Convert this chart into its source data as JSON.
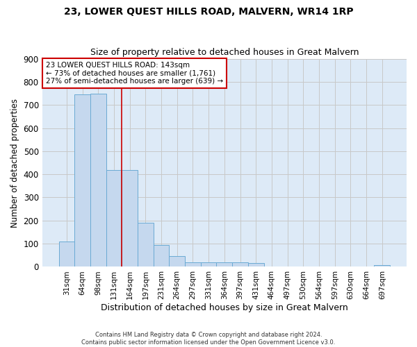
{
  "title": "23, LOWER QUEST HILLS ROAD, MALVERN, WR14 1RP",
  "subtitle": "Size of property relative to detached houses in Great Malvern",
  "xlabel": "Distribution of detached houses by size in Great Malvern",
  "ylabel": "Number of detached properties",
  "footer1": "Contains HM Land Registry data © Crown copyright and database right 2024.",
  "footer2": "Contains public sector information licensed under the Open Government Licence v3.0.",
  "categories": [
    "31sqm",
    "64sqm",
    "98sqm",
    "131sqm",
    "164sqm",
    "197sqm",
    "231sqm",
    "264sqm",
    "297sqm",
    "331sqm",
    "364sqm",
    "397sqm",
    "431sqm",
    "464sqm",
    "497sqm",
    "530sqm",
    "564sqm",
    "597sqm",
    "630sqm",
    "664sqm",
    "697sqm"
  ],
  "values": [
    110,
    745,
    750,
    420,
    420,
    190,
    95,
    45,
    20,
    20,
    18,
    18,
    15,
    0,
    0,
    0,
    0,
    0,
    0,
    0,
    8
  ],
  "bar_color": "#c5d8ee",
  "bar_edge_color": "#6aaad4",
  "grid_color": "#c8c8c8",
  "axes_bg_color": "#ddeaf7",
  "fig_bg_color": "#ffffff",
  "red_line_color": "#cc0000",
  "annotation_line1": "23 LOWER QUEST HILLS ROAD: 143sqm",
  "annotation_line2": "← 73% of detached houses are smaller (1,761)",
  "annotation_line3": "27% of semi-detached houses are larger (639) →",
  "annotation_box_color": "#ffffff",
  "annotation_box_edge": "#cc0000",
  "ylim": [
    0,
    900
  ],
  "yticks": [
    0,
    100,
    200,
    300,
    400,
    500,
    600,
    700,
    800,
    900
  ]
}
